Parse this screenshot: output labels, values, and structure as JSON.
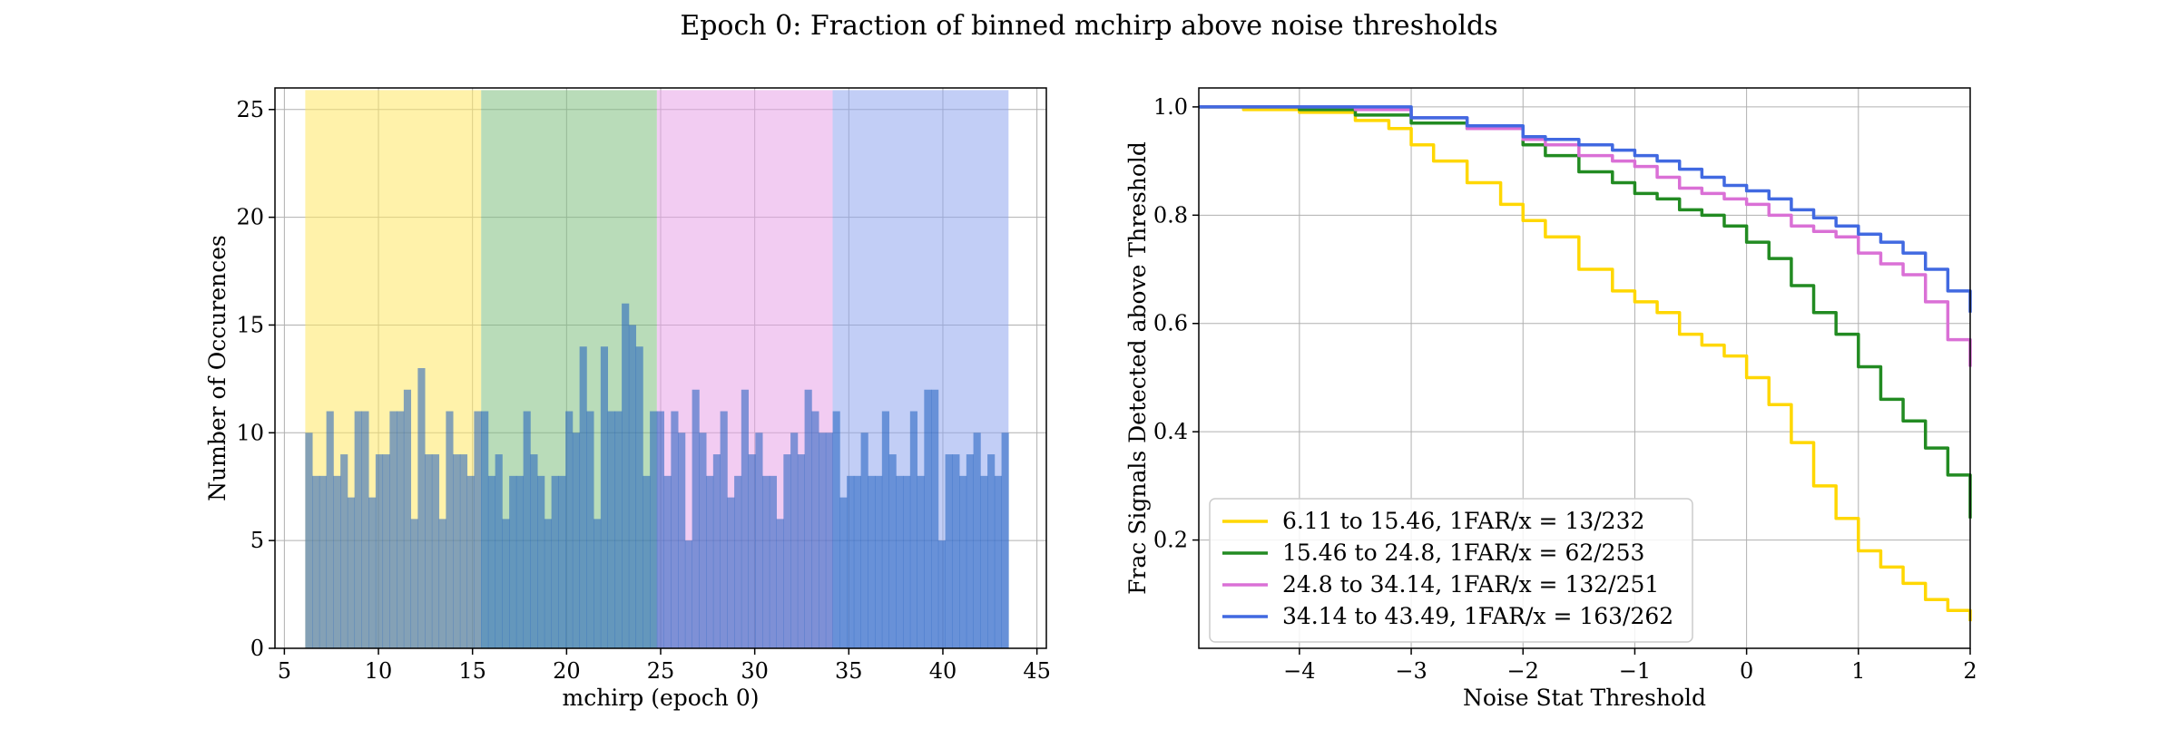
{
  "figure": {
    "suptitle": "Epoch 0: Fraction of binned mchirp above noise thresholds"
  },
  "colors": {
    "band_1": "#ffe864",
    "band_2": "#7fbf7f",
    "band_3": "#e8a3e8",
    "band_4": "#8fa5ee",
    "hist_fill": "#1f5fbf",
    "series_1": "#ffd700",
    "series_2": "#228b22",
    "series_3": "#da70d6",
    "series_4": "#4169e1"
  },
  "chart_data": [
    {
      "type": "bar",
      "subtype": "histogram",
      "xlabel": "mchirp (epoch 0)",
      "ylabel": "Number of Occurences",
      "xlim": [
        4.5,
        45.5
      ],
      "ylim": [
        0,
        26
      ],
      "xticks": [
        5,
        10,
        15,
        20,
        25,
        30,
        35,
        40,
        45
      ],
      "yticks": [
        0,
        5,
        10,
        15,
        20,
        25
      ],
      "grid": true,
      "bin_start": 6.11,
      "bin_width": 0.3738,
      "counts": [
        10,
        8,
        8,
        11,
        8,
        9,
        7,
        11,
        11,
        7,
        9,
        9,
        11,
        11,
        12,
        6,
        13,
        9,
        9,
        6,
        11,
        9,
        9,
        8,
        11,
        11,
        8,
        9,
        6,
        8,
        8,
        11,
        9,
        8,
        6,
        8,
        8,
        11,
        10,
        14,
        11,
        6,
        14,
        11,
        11,
        16,
        15,
        14,
        8,
        11,
        11,
        8,
        11,
        10,
        5,
        12,
        10,
        8,
        9,
        11,
        7,
        8,
        12,
        9,
        10,
        8,
        8,
        6,
        9,
        10,
        9,
        12,
        11,
        10,
        10,
        11,
        7,
        8,
        8,
        10,
        8,
        8,
        11,
        9,
        8,
        8,
        11,
        8,
        12,
        12,
        5,
        9,
        9,
        8,
        9,
        10,
        8,
        9,
        8,
        10
      ],
      "bands": [
        {
          "from": 6.11,
          "to": 15.46
        },
        {
          "from": 15.46,
          "to": 24.8
        },
        {
          "from": 24.8,
          "to": 34.14
        },
        {
          "from": 34.14,
          "to": 43.49
        }
      ]
    },
    {
      "type": "line",
      "xlabel": "Noise Stat Threshold",
      "ylabel": "Frac Signals Detected above Threshold",
      "xlim": [
        -4.9,
        2.0
      ],
      "ylim": [
        0.0,
        1.035
      ],
      "xticks": [
        -4,
        -3,
        -2,
        -1,
        0,
        1,
        2
      ],
      "yticks": [
        0.2,
        0.4,
        0.6,
        0.8,
        1.0
      ],
      "ytick_labels": [
        "0.2",
        "0.4",
        "0.6",
        "0.8",
        "1.0"
      ],
      "grid": true,
      "legend_position": "lower-left",
      "series": [
        {
          "name": "6.11 to 15.46, 1FAR/x = 13/232",
          "x": [
            -4.9,
            -4.5,
            -4.0,
            -3.5,
            -3.2,
            -3.0,
            -2.8,
            -2.5,
            -2.2,
            -2.0,
            -1.8,
            -1.5,
            -1.2,
            -1.0,
            -0.8,
            -0.6,
            -0.4,
            -0.2,
            0.0,
            0.2,
            0.4,
            0.6,
            0.8,
            1.0,
            1.2,
            1.4,
            1.6,
            1.8,
            2.0
          ],
          "y": [
            1.0,
            0.995,
            0.99,
            0.975,
            0.96,
            0.93,
            0.9,
            0.86,
            0.82,
            0.79,
            0.76,
            0.7,
            0.66,
            0.64,
            0.62,
            0.58,
            0.56,
            0.54,
            0.5,
            0.45,
            0.38,
            0.3,
            0.24,
            0.18,
            0.15,
            0.12,
            0.09,
            0.07,
            0.05
          ]
        },
        {
          "name": "15.46 to 24.8, 1FAR/x = 62/253",
          "x": [
            -4.9,
            -4.5,
            -4.0,
            -3.5,
            -3.0,
            -2.5,
            -2.0,
            -1.8,
            -1.5,
            -1.2,
            -1.0,
            -0.8,
            -0.6,
            -0.4,
            -0.2,
            0.0,
            0.2,
            0.4,
            0.6,
            0.8,
            1.0,
            1.2,
            1.4,
            1.6,
            1.8,
            2.0
          ],
          "y": [
            1.0,
            1.0,
            0.995,
            0.985,
            0.97,
            0.96,
            0.93,
            0.91,
            0.88,
            0.86,
            0.84,
            0.83,
            0.81,
            0.8,
            0.78,
            0.75,
            0.72,
            0.67,
            0.62,
            0.58,
            0.52,
            0.46,
            0.42,
            0.37,
            0.32,
            0.24
          ]
        },
        {
          "name": "24.8 to 34.14, 1FAR/x = 132/251",
          "x": [
            -4.9,
            -4.5,
            -4.0,
            -3.5,
            -3.0,
            -2.5,
            -2.0,
            -1.8,
            -1.5,
            -1.2,
            -1.0,
            -0.8,
            -0.6,
            -0.4,
            -0.2,
            0.0,
            0.2,
            0.4,
            0.6,
            0.8,
            1.0,
            1.2,
            1.4,
            1.6,
            1.8,
            2.0
          ],
          "y": [
            1.0,
            1.0,
            1.0,
            0.995,
            0.98,
            0.96,
            0.94,
            0.93,
            0.91,
            0.9,
            0.89,
            0.87,
            0.85,
            0.84,
            0.83,
            0.82,
            0.8,
            0.78,
            0.77,
            0.76,
            0.73,
            0.71,
            0.69,
            0.64,
            0.57,
            0.52
          ]
        },
        {
          "name": "34.14 to 43.49, 1FAR/x = 163/262",
          "x": [
            -4.9,
            -4.5,
            -4.0,
            -3.5,
            -3.0,
            -2.5,
            -2.0,
            -1.8,
            -1.5,
            -1.2,
            -1.0,
            -0.8,
            -0.6,
            -0.4,
            -0.2,
            0.0,
            0.2,
            0.4,
            0.6,
            0.8,
            1.0,
            1.2,
            1.4,
            1.6,
            1.8,
            2.0
          ],
          "y": [
            1.0,
            1.0,
            1.0,
            1.0,
            0.98,
            0.965,
            0.945,
            0.94,
            0.93,
            0.92,
            0.91,
            0.9,
            0.885,
            0.87,
            0.855,
            0.845,
            0.83,
            0.81,
            0.795,
            0.78,
            0.765,
            0.75,
            0.73,
            0.7,
            0.66,
            0.62
          ]
        }
      ]
    }
  ]
}
